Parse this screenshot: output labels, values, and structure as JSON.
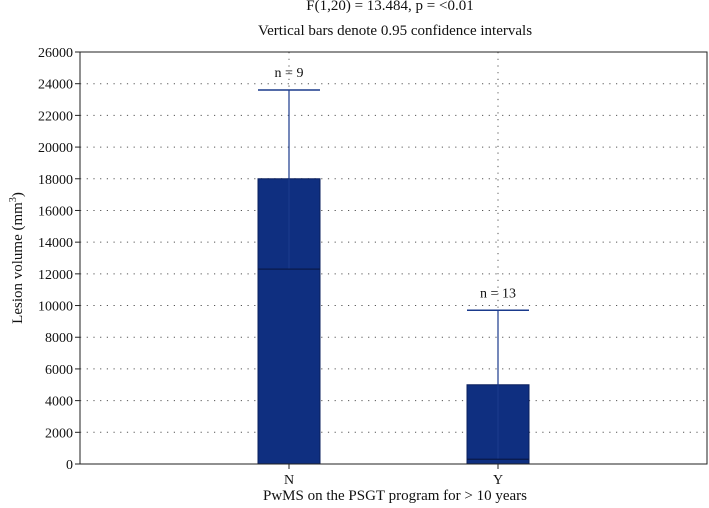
{
  "chart_data": {
    "type": "bar",
    "title_line1": "F(1,20) = 13.484, p = <0.01",
    "title_line2": "Vertical bars denote 0.95 confidence intervals",
    "xlabel": "PwMS on the PSGT program for > 10 years",
    "ylabel_main": "Lesion volume (mm",
    "ylabel_sup": "3",
    "ylabel_close": ")",
    "ylim": [
      0,
      26000
    ],
    "yticks": [
      0,
      2000,
      4000,
      6000,
      8000,
      10000,
      12000,
      14000,
      16000,
      18000,
      20000,
      22000,
      24000,
      26000
    ],
    "grid": true,
    "categories": [
      "N",
      "Y"
    ],
    "values": [
      18000,
      5000
    ],
    "ci_low": [
      12300,
      300
    ],
    "ci_high": [
      23600,
      9700
    ],
    "annotations": [
      "n = 9",
      "n = 13"
    ],
    "bar_color": "#0f2f80",
    "edge_color": "#0a1f5c",
    "error_color": "#1a3a8c"
  }
}
